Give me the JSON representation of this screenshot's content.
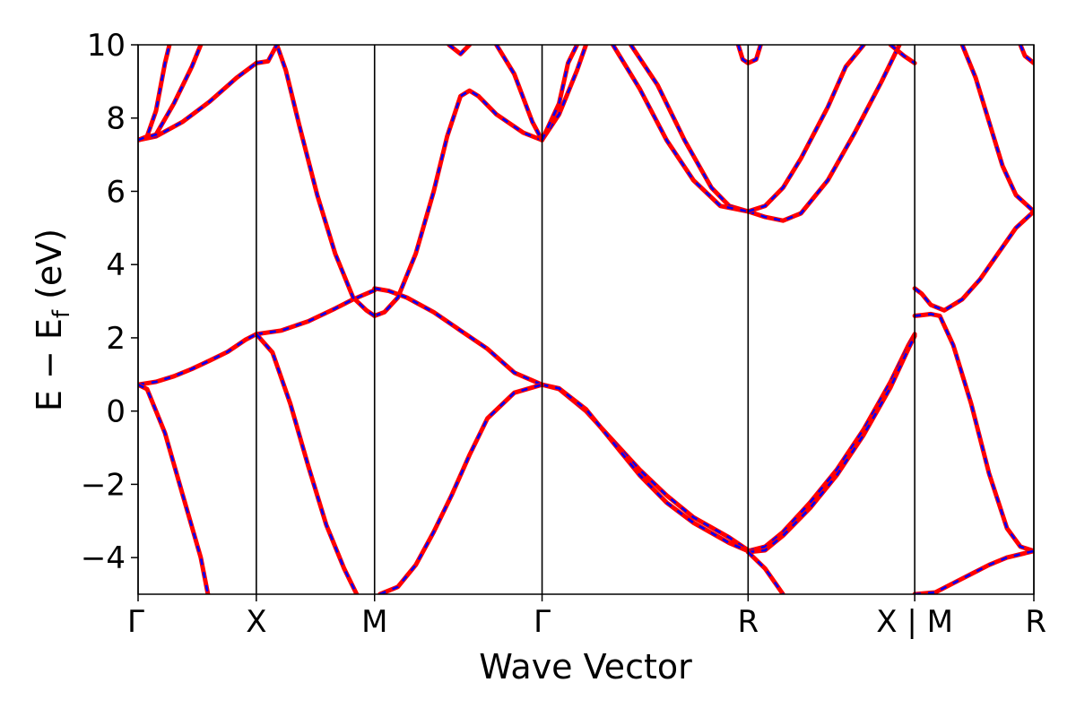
{
  "chart_data": {
    "type": "line",
    "xlabel": "Wave Vector",
    "ylabel": "E − E",
    "ylabel_sub": "f",
    "ylabel_unit": " (eV)",
    "ylim": [
      -5,
      10
    ],
    "yticks": [
      -4,
      -2,
      0,
      2,
      4,
      6,
      8,
      10
    ],
    "ytick_labels": [
      "−4",
      "−2",
      "0",
      "2",
      "4",
      "6",
      "8",
      "10"
    ],
    "xlim": [
      0,
      1
    ],
    "kpoints": [
      {
        "x": 0.0,
        "label": "Γ"
      },
      {
        "x": 0.132,
        "label": "X"
      },
      {
        "x": 0.264,
        "label": "M"
      },
      {
        "x": 0.451,
        "label": "Γ"
      },
      {
        "x": 0.681,
        "label": "R"
      },
      {
        "x": 0.867,
        "label": "X | M"
      },
      {
        "x": 1.0,
        "label": "R"
      }
    ],
    "grid": false,
    "legend": "none",
    "series": [
      {
        "style": "solid",
        "color": "#ff0000"
      },
      {
        "style": "dashed",
        "color": "#0000ff"
      }
    ],
    "bands": [
      [
        [
          0.0,
          0.72
        ],
        [
          0.02,
          0.8
        ],
        [
          0.04,
          0.95
        ],
        [
          0.06,
          1.15
        ],
        [
          0.08,
          1.38
        ],
        [
          0.1,
          1.62
        ],
        [
          0.12,
          1.95
        ],
        [
          0.132,
          2.1
        ]
      ],
      [
        [
          0.132,
          2.1
        ],
        [
          0.16,
          2.2
        ],
        [
          0.19,
          2.45
        ],
        [
          0.22,
          2.8
        ],
        [
          0.24,
          3.05
        ],
        [
          0.264,
          3.3
        ]
      ],
      [
        [
          0.264,
          3.35
        ],
        [
          0.28,
          3.28
        ],
        [
          0.3,
          3.1
        ],
        [
          0.33,
          2.7
        ],
        [
          0.36,
          2.2
        ],
        [
          0.39,
          1.7
        ],
        [
          0.42,
          1.05
        ],
        [
          0.451,
          0.72
        ]
      ],
      [
        [
          0.451,
          0.72
        ],
        [
          0.47,
          0.6
        ],
        [
          0.5,
          0.0
        ],
        [
          0.53,
          -0.8
        ],
        [
          0.56,
          -1.6
        ],
        [
          0.59,
          -2.3
        ],
        [
          0.62,
          -2.9
        ],
        [
          0.66,
          -3.45
        ],
        [
          0.681,
          -3.8
        ]
      ],
      [
        [
          0.451,
          0.72
        ],
        [
          0.47,
          0.62
        ],
        [
          0.5,
          0.05
        ],
        [
          0.53,
          -0.85
        ],
        [
          0.56,
          -1.75
        ],
        [
          0.59,
          -2.5
        ],
        [
          0.62,
          -3.05
        ],
        [
          0.66,
          -3.6
        ],
        [
          0.681,
          -3.82
        ]
      ],
      [
        [
          0.681,
          -3.82
        ],
        [
          0.7,
          -3.7
        ],
        [
          0.72,
          -3.3
        ],
        [
          0.75,
          -2.5
        ],
        [
          0.78,
          -1.6
        ],
        [
          0.81,
          -0.5
        ],
        [
          0.84,
          0.8
        ],
        [
          0.86,
          1.8
        ],
        [
          0.867,
          2.1
        ]
      ],
      [
        [
          0.681,
          -3.85
        ],
        [
          0.7,
          -3.8
        ],
        [
          0.72,
          -3.4
        ],
        [
          0.75,
          -2.65
        ],
        [
          0.78,
          -1.75
        ],
        [
          0.81,
          -0.65
        ],
        [
          0.84,
          0.65
        ],
        [
          0.86,
          1.7
        ],
        [
          0.867,
          2.05
        ]
      ],
      [
        [
          0.681,
          -3.85
        ],
        [
          0.7,
          -4.3
        ],
        [
          0.72,
          -5.0
        ]
      ],
      [
        [
          0.0,
          0.72
        ],
        [
          0.01,
          0.6
        ],
        [
          0.03,
          -0.6
        ],
        [
          0.05,
          -2.3
        ],
        [
          0.07,
          -4.0
        ],
        [
          0.078,
          -5.0
        ]
      ],
      [
        [
          0.132,
          2.1
        ],
        [
          0.15,
          1.6
        ],
        [
          0.17,
          0.2
        ],
        [
          0.19,
          -1.5
        ],
        [
          0.21,
          -3.1
        ],
        [
          0.23,
          -4.3
        ],
        [
          0.244,
          -5.0
        ]
      ],
      [
        [
          0.27,
          -5.0
        ],
        [
          0.29,
          -4.8
        ],
        [
          0.31,
          -4.2
        ],
        [
          0.33,
          -3.3
        ],
        [
          0.35,
          -2.3
        ],
        [
          0.37,
          -1.2
        ],
        [
          0.39,
          -0.2
        ],
        [
          0.42,
          0.5
        ],
        [
          0.451,
          0.72
        ]
      ],
      [
        [
          0.264,
          2.6
        ],
        [
          0.275,
          2.7
        ],
        [
          0.29,
          3.1
        ],
        [
          0.31,
          4.3
        ],
        [
          0.33,
          6.0
        ],
        [
          0.345,
          7.5
        ],
        [
          0.36,
          8.6
        ],
        [
          0.37,
          8.75
        ],
        [
          0.38,
          8.6
        ],
        [
          0.4,
          8.1
        ],
        [
          0.43,
          7.6
        ],
        [
          0.451,
          7.4
        ]
      ],
      [
        [
          0.264,
          2.6
        ],
        [
          0.255,
          2.75
        ],
        [
          0.24,
          3.1
        ],
        [
          0.22,
          4.3
        ],
        [
          0.2,
          5.9
        ],
        [
          0.18,
          7.8
        ],
        [
          0.165,
          9.3
        ],
        [
          0.155,
          10.0
        ]
      ],
      [
        [
          0.0,
          7.4
        ],
        [
          0.02,
          7.5
        ],
        [
          0.05,
          7.9
        ],
        [
          0.08,
          8.45
        ],
        [
          0.11,
          9.1
        ],
        [
          0.132,
          9.5
        ]
      ],
      [
        [
          0.0,
          7.4
        ],
        [
          0.02,
          7.55
        ],
        [
          0.04,
          8.4
        ],
        [
          0.06,
          9.4
        ],
        [
          0.07,
          10.0
        ]
      ],
      [
        [
          0.0,
          7.4
        ],
        [
          0.01,
          7.5
        ],
        [
          0.02,
          8.2
        ],
        [
          0.03,
          9.5
        ],
        [
          0.035,
          10.0
        ]
      ],
      [
        [
          0.132,
          9.5
        ],
        [
          0.145,
          9.55
        ],
        [
          0.155,
          10.0
        ]
      ],
      [
        [
          0.347,
          10.0
        ],
        [
          0.36,
          9.75
        ],
        [
          0.37,
          10.0
        ]
      ],
      [
        [
          0.4,
          10.0
        ],
        [
          0.42,
          9.2
        ],
        [
          0.44,
          7.9
        ],
        [
          0.451,
          7.4
        ]
      ],
      [
        [
          0.451,
          7.4
        ],
        [
          0.47,
          8.1
        ],
        [
          0.49,
          9.3
        ],
        [
          0.5,
          10.0
        ]
      ],
      [
        [
          0.451,
          7.4
        ],
        [
          0.47,
          8.4
        ],
        [
          0.48,
          9.5
        ],
        [
          0.49,
          10.0
        ]
      ],
      [
        [
          0.55,
          10.0
        ],
        [
          0.58,
          8.9
        ],
        [
          0.61,
          7.4
        ],
        [
          0.64,
          6.1
        ],
        [
          0.66,
          5.6
        ],
        [
          0.681,
          5.45
        ]
      ],
      [
        [
          0.53,
          10.0
        ],
        [
          0.56,
          8.8
        ],
        [
          0.59,
          7.4
        ],
        [
          0.62,
          6.3
        ],
        [
          0.65,
          5.6
        ],
        [
          0.681,
          5.45
        ]
      ],
      [
        [
          0.681,
          5.45
        ],
        [
          0.7,
          5.3
        ],
        [
          0.72,
          5.2
        ],
        [
          0.74,
          5.4
        ],
        [
          0.77,
          6.3
        ],
        [
          0.8,
          7.6
        ],
        [
          0.83,
          9.0
        ],
        [
          0.85,
          10.0
        ]
      ],
      [
        [
          0.681,
          5.45
        ],
        [
          0.7,
          5.6
        ],
        [
          0.72,
          6.1
        ],
        [
          0.74,
          6.9
        ],
        [
          0.77,
          8.3
        ],
        [
          0.79,
          9.4
        ],
        [
          0.81,
          10.0
        ]
      ],
      [
        [
          0.67,
          10.0
        ],
        [
          0.675,
          9.6
        ],
        [
          0.681,
          9.5
        ],
        [
          0.69,
          9.6
        ],
        [
          0.695,
          10.0
        ]
      ],
      [
        [
          0.84,
          10.0
        ],
        [
          0.855,
          9.7
        ],
        [
          0.867,
          9.5
        ]
      ],
      [
        [
          0.867,
          3.35
        ],
        [
          0.875,
          3.2
        ],
        [
          0.885,
          2.9
        ],
        [
          0.9,
          2.75
        ],
        [
          0.92,
          3.05
        ],
        [
          0.94,
          3.6
        ],
        [
          0.96,
          4.3
        ],
        [
          0.98,
          5.0
        ],
        [
          1.0,
          5.45
        ]
      ],
      [
        [
          0.867,
          2.6
        ],
        [
          0.875,
          2.62
        ],
        [
          0.885,
          2.65
        ],
        [
          0.895,
          2.6
        ],
        [
          0.91,
          1.8
        ],
        [
          0.93,
          0.2
        ],
        [
          0.95,
          -1.7
        ],
        [
          0.97,
          -3.2
        ],
        [
          0.985,
          -3.7
        ],
        [
          1.0,
          -3.82
        ]
      ],
      [
        [
          0.867,
          -5.0
        ],
        [
          0.89,
          -4.95
        ],
        [
          0.91,
          -4.7
        ],
        [
          0.93,
          -4.45
        ],
        [
          0.95,
          -4.2
        ],
        [
          0.97,
          -4.0
        ],
        [
          1.0,
          -3.82
        ]
      ],
      [
        [
          0.92,
          10.0
        ],
        [
          0.935,
          9.1
        ],
        [
          0.95,
          7.9
        ],
        [
          0.965,
          6.7
        ],
        [
          0.98,
          5.9
        ],
        [
          1.0,
          5.45
        ]
      ],
      [
        [
          0.985,
          10.0
        ],
        [
          0.99,
          9.7
        ],
        [
          1.0,
          9.5
        ]
      ]
    ]
  }
}
